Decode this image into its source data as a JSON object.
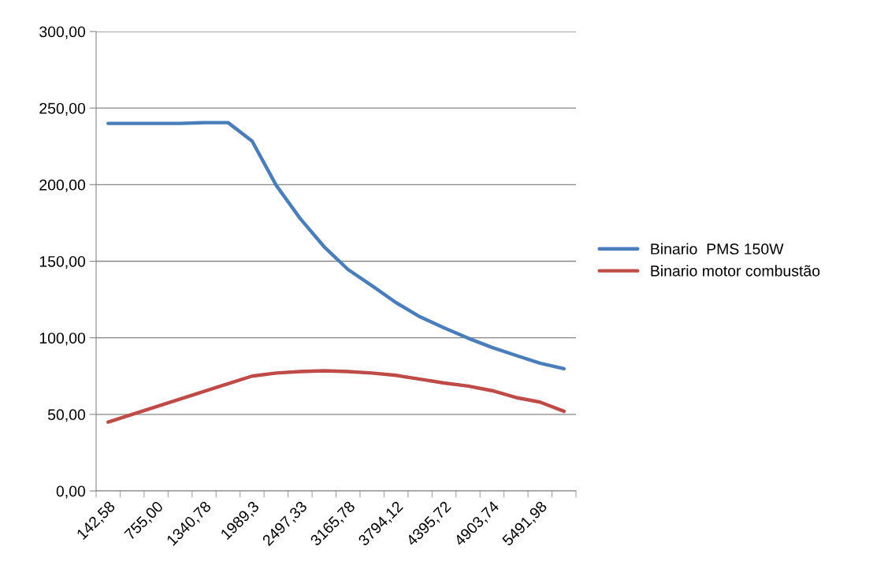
{
  "chart_data": {
    "type": "line",
    "categories": [
      "142,58",
      null,
      "755,00",
      null,
      "1340,78",
      null,
      "1989,3",
      null,
      "2497,33",
      null,
      "3165,78",
      null,
      "3794,12",
      null,
      "4395,72",
      null,
      "4903,74",
      null,
      "5491,98",
      null
    ],
    "series": [
      {
        "name": "Binario  PMS 150W",
        "color": "#4a7ebb",
        "values": [
          240,
          240,
          240,
          240,
          240.5,
          240.5,
          228.5,
          199.7,
          178,
          159.5,
          144.6,
          134,
          123,
          113.7,
          106.5,
          99.8,
          93.7,
          88.5,
          83.4,
          79.8
        ]
      },
      {
        "name": "Binario motor combustão",
        "color": "#be4b48",
        "values": [
          45,
          50,
          55,
          60,
          65,
          70,
          75,
          77,
          78,
          78.5,
          78,
          77,
          75.5,
          73,
          70.5,
          68.5,
          65.5,
          61,
          58,
          52
        ]
      }
    ],
    "ylim": [
      0,
      300
    ],
    "yticks": [
      {
        "value": 0,
        "label": "0,00"
      },
      {
        "value": 50,
        "label": "50,00"
      },
      {
        "value": 100,
        "label": "100,00"
      },
      {
        "value": 150,
        "label": "150,00"
      },
      {
        "value": 200,
        "label": "200,00"
      },
      {
        "value": 250,
        "label": "250,00"
      },
      {
        "value": 300,
        "label": "300,00"
      }
    ],
    "grid": "y",
    "legend": "right",
    "marker": "none",
    "line_style": "solid"
  }
}
